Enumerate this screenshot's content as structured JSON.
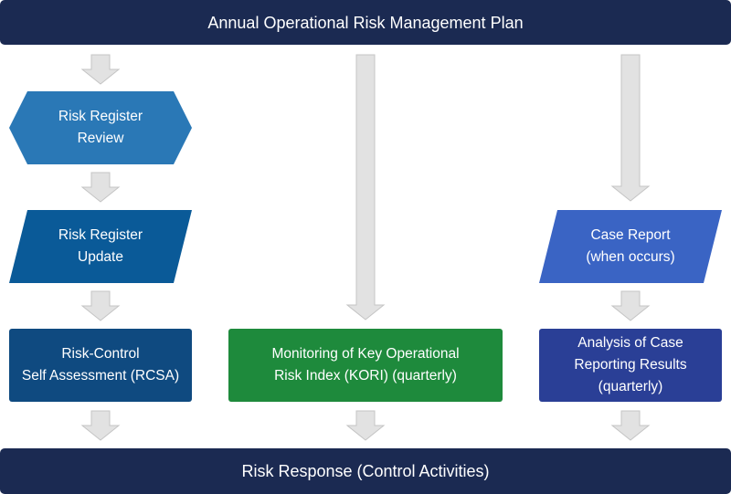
{
  "top_banner": {
    "text": "Annual Operational Risk Management Plan"
  },
  "bottom_banner": {
    "text": "Risk Response (Control Activities)"
  },
  "columns": {
    "left": {
      "risk_register_review": "Risk Register\nReview",
      "risk_register_update": "Risk Register\nUpdate",
      "rcsa": "Risk-Control\nSelf Assessment (RCSA)"
    },
    "middle": {
      "kori": "Monitoring of Key Operational\nRisk Index (KORI) (quarterly)"
    },
    "right": {
      "case_report": "Case Report\n(when occurs)",
      "analysis": "Analysis of Case\nReporting Results\n(quarterly)"
    }
  },
  "colors": {
    "banner": "#1b2a52",
    "review": "#2a78b6",
    "update": "#0a5a98",
    "rcsa": "#0f4a80",
    "kori": "#1e8a3c",
    "case_report": "#3a64c4",
    "analysis": "#2a3f96",
    "arrow_fill": "#e2e2e2",
    "arrow_stroke": "#c4c4c4"
  }
}
